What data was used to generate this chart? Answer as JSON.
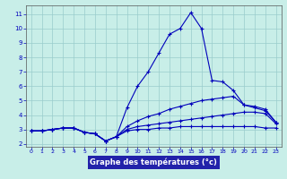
{
  "title": "Graphe des températures (°c)",
  "background_color": "#c8eee8",
  "grid_color": "#99cccc",
  "line_color": "#0000bb",
  "xlabel_bg": "#2222aa",
  "xlabel_fg": "#ffffff",
  "xlim": [
    -0.5,
    23.5
  ],
  "ylim": [
    1.8,
    11.6
  ],
  "xticks": [
    0,
    1,
    2,
    3,
    4,
    5,
    6,
    7,
    8,
    9,
    10,
    11,
    12,
    13,
    14,
    15,
    16,
    17,
    18,
    19,
    20,
    21,
    22,
    23
  ],
  "yticks": [
    2,
    3,
    4,
    5,
    6,
    7,
    8,
    9,
    10,
    11
  ],
  "curves": [
    [
      2.9,
      2.9,
      3.0,
      3.1,
      3.1,
      2.8,
      2.7,
      2.2,
      2.5,
      4.5,
      6.0,
      7.0,
      8.3,
      9.6,
      10.0,
      11.1,
      10.0,
      6.4,
      6.3,
      5.7,
      4.7,
      4.6,
      4.4,
      3.5
    ],
    [
      2.9,
      2.9,
      3.0,
      3.1,
      3.1,
      2.8,
      2.7,
      2.2,
      2.5,
      3.2,
      3.6,
      3.9,
      4.1,
      4.4,
      4.6,
      4.8,
      5.0,
      5.1,
      5.2,
      5.3,
      4.7,
      4.5,
      4.3,
      3.5
    ],
    [
      2.9,
      2.9,
      3.0,
      3.1,
      3.1,
      2.8,
      2.7,
      2.2,
      2.5,
      3.0,
      3.2,
      3.3,
      3.4,
      3.5,
      3.6,
      3.7,
      3.8,
      3.9,
      4.0,
      4.1,
      4.2,
      4.2,
      4.1,
      3.4
    ],
    [
      2.9,
      2.9,
      3.0,
      3.1,
      3.1,
      2.8,
      2.7,
      2.2,
      2.5,
      2.9,
      3.0,
      3.0,
      3.1,
      3.1,
      3.2,
      3.2,
      3.2,
      3.2,
      3.2,
      3.2,
      3.2,
      3.2,
      3.1,
      3.1
    ]
  ]
}
